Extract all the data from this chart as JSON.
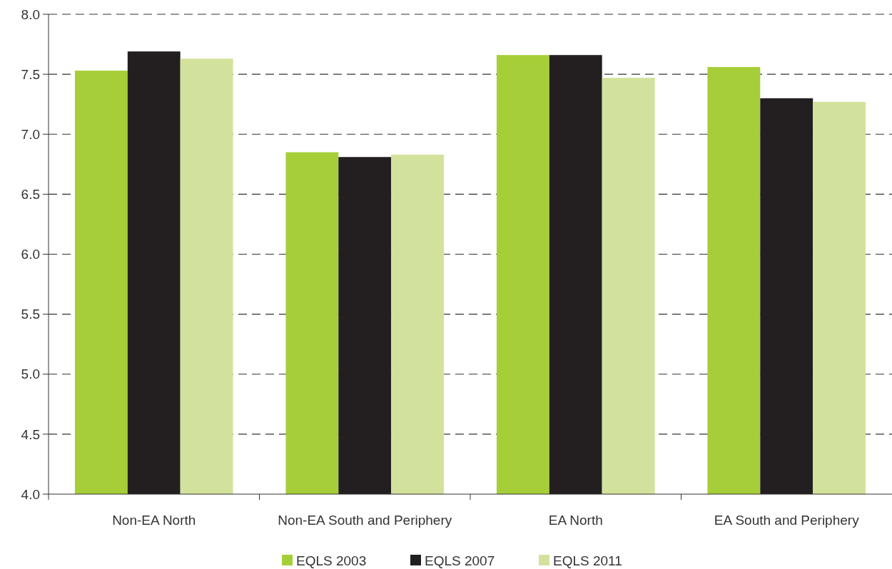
{
  "chart_data": {
    "type": "bar",
    "categories": [
      "Non-EA North",
      "Non-EA South and Periphery",
      "EA North",
      "EA South and Periphery"
    ],
    "series": [
      {
        "name": "EQLS 2003",
        "color": "#a6ce39",
        "values": [
          7.53,
          6.85,
          7.66,
          7.56
        ]
      },
      {
        "name": "EQLS 2007",
        "color": "#231f20",
        "values": [
          7.69,
          6.81,
          7.66,
          7.3
        ]
      },
      {
        "name": "EQLS 2011",
        "color": "#d2e29c",
        "values": [
          7.63,
          6.83,
          7.47,
          7.27
        ]
      }
    ],
    "ylim": [
      4.0,
      8.0
    ],
    "yticks": [
      {
        "value": 4,
        "label": "4.0"
      },
      {
        "value": 4.5,
        "label": "4.5"
      },
      {
        "value": 5,
        "label": "5.0"
      },
      {
        "value": 5.5,
        "label": "5.5"
      },
      {
        "value": 6,
        "label": "6.0"
      },
      {
        "value": 6.5,
        "label": "6.5"
      },
      {
        "value": 7,
        "label": "7.0"
      },
      {
        "value": 7.5,
        "label": "7.5"
      },
      {
        "value": 8,
        "label": "8.0"
      }
    ],
    "grid": "y",
    "legend": "bottom"
  }
}
